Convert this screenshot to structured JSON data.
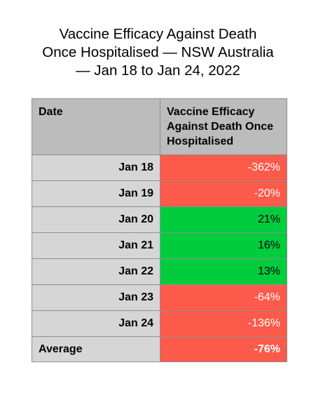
{
  "title_lines": [
    "Vaccine Efficacy Against Death",
    "Once Hospitalised — NSW Australia",
    "— Jan 18 to Jan 24, 2022"
  ],
  "colors": {
    "negative": "#fc5a4a",
    "positive": "#00cc3d",
    "label_background": "#d6d6d6",
    "header_background": "#bcbcbc"
  },
  "chart_data": {
    "type": "table",
    "title": "Vaccine Efficacy Against Death Once Hospitalised — NSW Australia — Jan 18 to Jan 24, 2022",
    "columns": [
      "Date",
      "Vaccine Efficacy Against Death Once Hospitalised"
    ],
    "rows": [
      {
        "date": "Jan 18",
        "value": -362,
        "display": "-362%"
      },
      {
        "date": "Jan 19",
        "value": -20,
        "display": "-20%"
      },
      {
        "date": "Jan 20",
        "value": 21,
        "display": "21%"
      },
      {
        "date": "Jan 21",
        "value": 16,
        "display": "16%"
      },
      {
        "date": "Jan 22",
        "value": 13,
        "display": "13%"
      },
      {
        "date": "Jan 23",
        "value": -64,
        "display": "-64%"
      },
      {
        "date": "Jan 24",
        "value": -136,
        "display": "-136%"
      }
    ],
    "average": {
      "label": "Average",
      "value": -76,
      "display": "-76%"
    }
  }
}
